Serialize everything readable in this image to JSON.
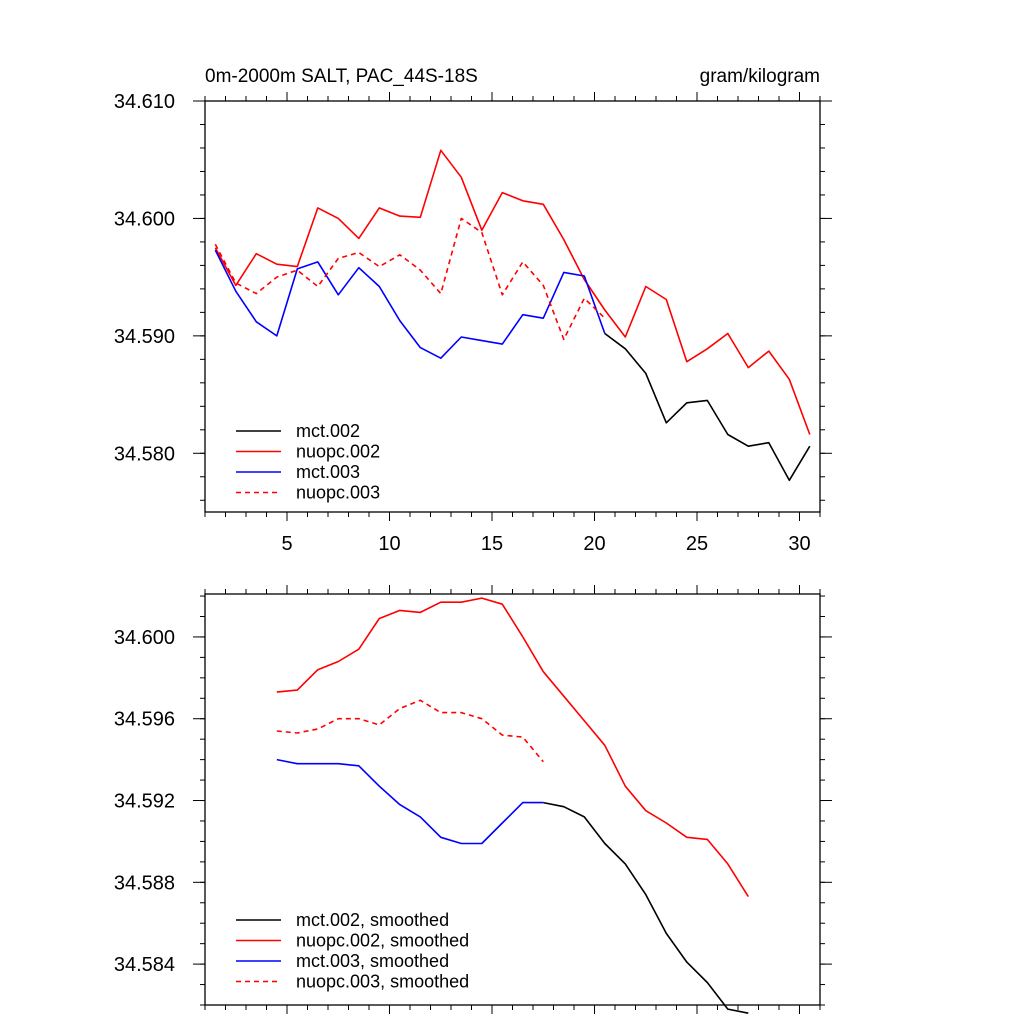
{
  "colors": {
    "mct002": "#000000",
    "nuopc002": "#ff0000",
    "mct003": "#0000ff",
    "nuopc003": "#ff0000"
  },
  "chart_data": [
    {
      "type": "line",
      "title_left": "0m-2000m SALT, PAC_44S-18S",
      "title_right": "gram/kilogram",
      "xlim": [
        1,
        31
      ],
      "ylim": [
        34.575,
        34.61
      ],
      "x_ticks": [
        5,
        10,
        15,
        20,
        25,
        30
      ],
      "y_ticks": [
        "34.580",
        "34.590",
        "34.600",
        "34.610"
      ],
      "y_tick_values": [
        34.58,
        34.59,
        34.6,
        34.61
      ],
      "legend_position": "bottom-left",
      "series": [
        {
          "name": "mct.002",
          "style": "solid",
          "color_key": "mct002",
          "x": [
            20.5,
            21.5,
            22.5,
            23.5,
            24.5,
            25.5,
            26.5,
            27.5,
            28.5,
            29.5,
            30.5
          ],
          "values": [
            34.5902,
            34.5889,
            34.5868,
            34.5826,
            34.5843,
            34.5845,
            34.5816,
            34.5806,
            34.5809,
            34.5777,
            34.5806
          ]
        },
        {
          "name": "nuopc.002",
          "style": "solid",
          "color_key": "nuopc002",
          "x": [
            1.5,
            2.5,
            3.5,
            4.5,
            5.5,
            6.5,
            7.5,
            8.5,
            9.5,
            10.5,
            11.5,
            12.5,
            13.5,
            14.5,
            15.5,
            16.5,
            17.5,
            18.5,
            19.5,
            20.5,
            21.5,
            22.5,
            23.5,
            24.5,
            25.5,
            26.5,
            27.5,
            28.5,
            29.5,
            30.5
          ],
          "values": [
            34.5975,
            34.5943,
            34.597,
            34.5961,
            34.5959,
            34.6009,
            34.6,
            34.5983,
            34.6009,
            34.6002,
            34.6001,
            34.6058,
            34.6035,
            34.599,
            34.6022,
            34.6015,
            34.6012,
            34.5982,
            34.5948,
            34.5922,
            34.5899,
            34.5942,
            34.5931,
            34.5878,
            34.5889,
            34.5902,
            34.5873,
            34.5887,
            34.5863,
            34.5816
          ]
        },
        {
          "name": "mct.003",
          "style": "solid",
          "color_key": "mct003",
          "x": [
            1.5,
            2.5,
            3.5,
            4.5,
            5.5,
            6.5,
            7.5,
            8.5,
            9.5,
            10.5,
            11.5,
            12.5,
            13.5,
            14.5,
            15.5,
            16.5,
            17.5,
            18.5,
            19.5,
            20.5
          ],
          "values": [
            34.5973,
            34.5938,
            34.5912,
            34.59,
            34.5957,
            34.5963,
            34.5935,
            34.5958,
            34.5942,
            34.5913,
            34.589,
            34.5881,
            34.5899,
            34.5896,
            34.5893,
            34.5918,
            34.5915,
            34.5954,
            34.5951,
            34.5902
          ]
        },
        {
          "name": "nuopc.003",
          "style": "dashed",
          "color_key": "nuopc003",
          "x": [
            1.5,
            2.5,
            3.5,
            4.5,
            5.5,
            6.5,
            7.5,
            8.5,
            9.5,
            10.5,
            11.5,
            12.5,
            13.5,
            14.5,
            15.5,
            16.5,
            17.5,
            18.5,
            19.5,
            20.5
          ],
          "values": [
            34.5978,
            34.5945,
            34.5936,
            34.595,
            34.5956,
            34.5942,
            34.5966,
            34.5971,
            34.5959,
            34.5969,
            34.5956,
            34.5936,
            34.6,
            34.5988,
            34.5935,
            34.5963,
            34.5943,
            34.5897,
            34.5932,
            34.5915
          ]
        }
      ]
    },
    {
      "type": "line",
      "xlim": [
        1,
        31
      ],
      "ylim": [
        34.582,
        34.6021
      ],
      "x_ticks": [
        5,
        10,
        15,
        20,
        25,
        30
      ],
      "x_tick_labels_shown": false,
      "y_ticks": [
        "34.584",
        "34.588",
        "34.592",
        "34.596",
        "34.600"
      ],
      "y_tick_values": [
        34.584,
        34.588,
        34.592,
        34.596,
        34.6
      ],
      "legend_position": "bottom-left",
      "series": [
        {
          "name": "mct.002, smoothed",
          "style": "solid",
          "color_key": "mct002",
          "x": [
            17.5,
            18.5,
            19.5,
            20.5,
            21.5,
            22.5,
            23.5,
            24.5,
            25.5,
            26.5,
            27.5
          ],
          "values": [
            34.5919,
            34.5917,
            34.5912,
            34.5899,
            34.5889,
            34.5874,
            34.5855,
            34.5841,
            34.5831,
            34.5818,
            34.5816
          ]
        },
        {
          "name": "nuopc.002, smoothed",
          "style": "solid",
          "color_key": "nuopc002",
          "x": [
            4.5,
            5.5,
            6.5,
            7.5,
            8.5,
            9.5,
            10.5,
            11.5,
            12.5,
            13.5,
            14.5,
            15.5,
            16.5,
            17.5,
            18.5,
            19.5,
            20.5,
            21.5,
            22.5,
            23.5,
            24.5,
            25.5,
            26.5,
            27.5
          ],
          "values": [
            34.5973,
            34.5974,
            34.5984,
            34.5988,
            34.5994,
            34.6009,
            34.6013,
            34.6012,
            34.6017,
            34.6017,
            34.6019,
            34.6016,
            34.6,
            34.5983,
            34.5971,
            34.5959,
            34.5947,
            34.5927,
            34.5915,
            34.5909,
            34.5902,
            34.5901,
            34.5889,
            34.5873
          ]
        },
        {
          "name": "mct.003, smoothed",
          "style": "solid",
          "color_key": "mct003",
          "x": [
            4.5,
            5.5,
            6.5,
            7.5,
            8.5,
            9.5,
            10.5,
            11.5,
            12.5,
            13.5,
            14.5,
            15.5,
            16.5,
            17.5
          ],
          "values": [
            34.594,
            34.5938,
            34.5938,
            34.5938,
            34.5937,
            34.5927,
            34.5918,
            34.5912,
            34.5902,
            34.5899,
            34.5899,
            34.5909,
            34.5919,
            34.5919
          ]
        },
        {
          "name": "nuopc.003, smoothed",
          "style": "dashed",
          "color_key": "nuopc003",
          "x": [
            4.5,
            5.5,
            6.5,
            7.5,
            8.5,
            9.5,
            10.5,
            11.5,
            12.5,
            13.5,
            14.5,
            15.5,
            16.5,
            17.5
          ],
          "values": [
            34.5954,
            34.5953,
            34.5955,
            34.596,
            34.596,
            34.5957,
            34.5965,
            34.5969,
            34.5963,
            34.5963,
            34.596,
            34.5952,
            34.5951,
            34.5939
          ]
        }
      ]
    }
  ]
}
